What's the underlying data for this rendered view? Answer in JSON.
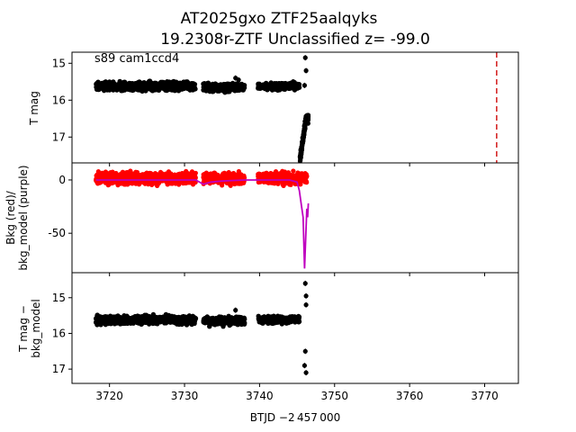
{
  "figure": {
    "title_line1": "AT2025gxo  ZTF25aalqyks",
    "title_line2": "19.2308r-ZTF Unclassified z= -99.0",
    "xlabel": "BTJD −2 457 000"
  },
  "chart_data": [
    {
      "type": "scatter",
      "panel": "top",
      "ylabel": "T mag",
      "annotation": "s89 cam1ccd4",
      "y_inverted": true,
      "xlim": [
        3715.0,
        3774.5
      ],
      "ylim": [
        17.7,
        14.7
      ],
      "x_ticks": [
        3720,
        3730,
        3740,
        3750,
        3760,
        3770
      ],
      "y_ticks": [
        15,
        16,
        17
      ],
      "series": [
        {
          "color": "#000000",
          "segments": [
            {
              "x_range": [
                3718.2,
                3731.5
              ],
              "y_mean": 15.62,
              "y_scatter": 0.08
            },
            {
              "x_range": [
                3732.5,
                3738.0
              ],
              "y_mean": 15.65,
              "y_scatter": 0.08
            },
            {
              "x_range": [
                3739.8,
                3745.3
              ],
              "y_mean": 15.62,
              "y_scatter": 0.07
            }
          ]
        }
      ],
      "notable_points": [
        {
          "x": 3736.8,
          "y": 15.4
        },
        {
          "x": 3737.2,
          "y": 15.45
        },
        {
          "x": 3746.1,
          "y": 14.85
        },
        {
          "x": 3746.2,
          "y": 15.2
        },
        {
          "x": 3746.0,
          "y": 15.6
        }
      ],
      "decline": {
        "x_range": [
          3745.4,
          3746.5
        ],
        "y_from": 17.6,
        "y_to": 16.5
      },
      "vline": {
        "x": 3771.6,
        "color": "#d62728",
        "style": "dashed"
      }
    },
    {
      "type": "line",
      "panel": "middle",
      "ylabel": "Bkg (red)/\nbkg_model (purple)",
      "xlim": [
        3715.0,
        3774.5
      ],
      "ylim": [
        -87,
        16
      ],
      "y_ticks": [
        0,
        -50
      ],
      "series": [
        {
          "color": "#ff0000",
          "style": "points",
          "segments": [
            {
              "x_range": [
                3718.2,
                3731.5
              ],
              "y_mean": 1.5,
              "y_scatter": 4
            },
            {
              "x_range": [
                3732.5,
                3738.0
              ],
              "y_mean": 1.5,
              "y_scatter": 4
            },
            {
              "x_range": [
                3739.8,
                3746.3
              ],
              "y_mean": 1.5,
              "y_scatter": 4
            }
          ]
        },
        {
          "color": "#bf00bf",
          "style": "line",
          "points": [
            [
              3718.2,
              0
            ],
            [
              3722,
              0
            ],
            [
              3726,
              0
            ],
            [
              3730,
              0
            ],
            [
              3731.5,
              0
            ],
            [
              3732.5,
              -4
            ],
            [
              3733.5,
              -2
            ],
            [
              3735,
              -1
            ],
            [
              3738.0,
              0
            ],
            [
              3739.8,
              0
            ],
            [
              3742,
              0
            ],
            [
              3744,
              0
            ],
            [
              3745.0,
              -2
            ],
            [
              3745.3,
              -10
            ],
            [
              3745.6,
              -25
            ],
            [
              3745.8,
              -35
            ],
            [
              3746.0,
              -83
            ],
            [
              3746.3,
              -27
            ],
            [
              3746.4,
              -35
            ],
            [
              3746.5,
              -22
            ]
          ]
        }
      ]
    },
    {
      "type": "scatter",
      "panel": "bottom",
      "ylabel": "T mag −\nbkg_model",
      "y_inverted": true,
      "xlim": [
        3715.0,
        3774.5
      ],
      "ylim": [
        17.4,
        14.3
      ],
      "y_ticks": [
        15,
        16,
        17
      ],
      "series": [
        {
          "color": "#000000",
          "segments": [
            {
              "x_range": [
                3718.2,
                3731.5
              ],
              "y_mean": 15.62,
              "y_scatter": 0.08
            },
            {
              "x_range": [
                3732.5,
                3738.0
              ],
              "y_mean": 15.65,
              "y_scatter": 0.08
            },
            {
              "x_range": [
                3739.8,
                3745.3
              ],
              "y_mean": 15.62,
              "y_scatter": 0.07
            }
          ]
        }
      ],
      "notable_points": [
        {
          "x": 3736.8,
          "y": 15.35
        },
        {
          "x": 3746.1,
          "y": 14.6
        },
        {
          "x": 3746.2,
          "y": 14.95
        },
        {
          "x": 3746.2,
          "y": 15.2
        },
        {
          "x": 3746.1,
          "y": 16.5
        },
        {
          "x": 3746.0,
          "y": 16.9
        },
        {
          "x": 3746.2,
          "y": 17.1
        }
      ]
    }
  ]
}
